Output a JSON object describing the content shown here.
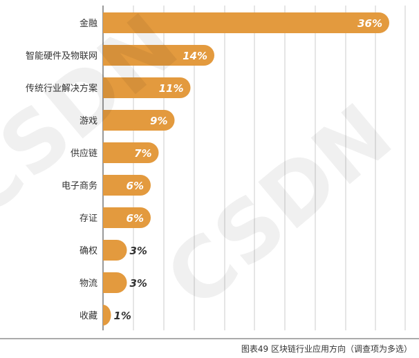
{
  "chart_data": {
    "type": "bar",
    "orientation": "horizontal",
    "categories": [
      "金融",
      "智能硬件及物联网",
      "传统行业解决方案",
      "游戏",
      "供应链",
      "电子商务",
      "存证",
      "确权",
      "物流",
      "收藏"
    ],
    "values": [
      36,
      14,
      11,
      9,
      7,
      6,
      6,
      3,
      3,
      1
    ],
    "value_labels": [
      "36%",
      "14%",
      "11%",
      "9%",
      "7%",
      "6%",
      "6%",
      "3%",
      "3%",
      "1%"
    ],
    "unit": "%",
    "xlim": [
      0,
      38
    ],
    "grid": true,
    "title": "",
    "xlabel": "",
    "ylabel": ""
  },
  "caption": "图表49 区块链行业应用方向（调查项为多选）",
  "watermark": "CSDN",
  "colors": {
    "bar": "#E39A3E",
    "value_label_inside": "#FFFFFF",
    "value_label_outside": "#333333",
    "grid": "#BFBFBF",
    "axis": "#555555"
  }
}
